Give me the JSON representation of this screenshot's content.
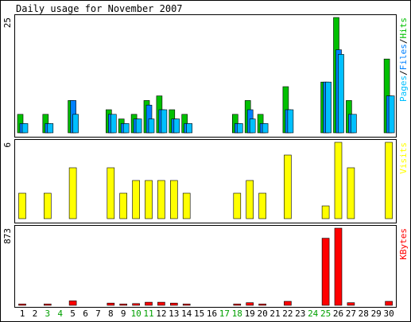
{
  "chart_data": {
    "type": "bar",
    "title": "Daily usage for November 2007",
    "days": [
      "1",
      "2",
      "3",
      "4",
      "5",
      "6",
      "7",
      "8",
      "9",
      "10",
      "11",
      "12",
      "13",
      "14",
      "15",
      "16",
      "17",
      "18",
      "19",
      "20",
      "21",
      "22",
      "23",
      "24",
      "25",
      "26",
      "27",
      "28",
      "29",
      "30"
    ],
    "weekend_days": [
      "3",
      "4",
      "10",
      "11",
      "17",
      "18",
      "24",
      "25"
    ],
    "panels": [
      {
        "id": "hits",
        "scale_label": "25",
        "ymax": 25,
        "legend": [
          {
            "text": "Pages",
            "color": "#00c0ff"
          },
          {
            "text": "/",
            "color": "#000000"
          },
          {
            "text": "Files",
            "color": "#0080ff"
          },
          {
            "text": "/",
            "color": "#000000"
          },
          {
            "text": "Hits",
            "color": "#00c000"
          }
        ],
        "series": [
          {
            "name": "Hits",
            "color": "#00c000",
            "values": [
              4,
              0,
              4,
              0,
              7,
              0,
              0,
              5,
              3,
              4,
              7,
              8,
              5,
              4,
              0,
              0,
              0,
              4,
              7,
              4,
              0,
              10,
              0,
              0,
              11,
              25,
              7,
              0,
              0,
              16
            ]
          },
          {
            "name": "Files",
            "color": "#0080ff",
            "values": [
              2,
              0,
              2,
              0,
              7,
              0,
              0,
              4,
              2,
              3,
              6,
              5,
              3,
              2,
              0,
              0,
              0,
              2,
              5,
              2,
              0,
              5,
              0,
              0,
              11,
              18,
              4,
              0,
              0,
              8
            ]
          },
          {
            "name": "Pages",
            "color": "#00c0ff",
            "values": [
              2,
              0,
              2,
              0,
              4,
              0,
              0,
              4,
              2,
              3,
              3,
              5,
              3,
              2,
              0,
              0,
              0,
              2,
              3,
              2,
              0,
              5,
              0,
              0,
              11,
              17,
              4,
              0,
              0,
              8
            ]
          }
        ]
      },
      {
        "id": "visits",
        "scale_label": "6",
        "ymax": 6,
        "legend": [
          {
            "text": "Visits",
            "color": "#ffff00"
          }
        ],
        "series": [
          {
            "name": "Visits",
            "color": "#ffff00",
            "values": [
              2,
              0,
              2,
              0,
              4,
              0,
              0,
              4,
              2,
              3,
              3,
              3,
              3,
              2,
              0,
              0,
              0,
              2,
              3,
              2,
              0,
              5,
              0,
              0,
              1,
              6,
              4,
              0,
              0,
              6
            ]
          }
        ]
      },
      {
        "id": "kbytes",
        "scale_label": "873",
        "ymax": 873,
        "legend": [
          {
            "text": "KBytes",
            "color": "#ff0000"
          }
        ],
        "series": [
          {
            "name": "KBytes",
            "color": "#ff0000",
            "values": [
              15,
              0,
              15,
              0,
              50,
              0,
              0,
              25,
              15,
              20,
              35,
              35,
              25,
              15,
              0,
              0,
              0,
              15,
              30,
              15,
              0,
              45,
              0,
              0,
              760,
              873,
              30,
              0,
              0,
              45
            ]
          }
        ]
      }
    ]
  }
}
